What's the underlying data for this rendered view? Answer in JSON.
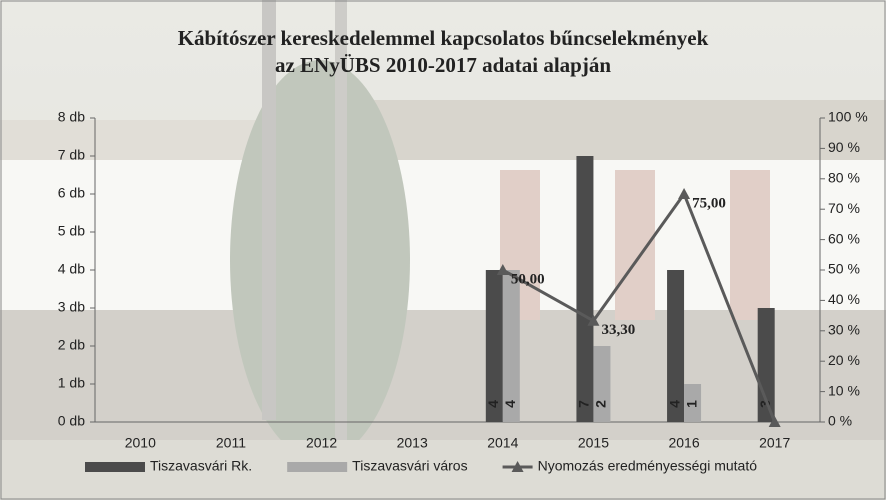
{
  "chart_data": {
    "type": "bar",
    "title": [
      "Kábítószer kereskedelemmel kapcsolatos bűncselekmények",
      "az ENyÜBS 2010-2017 adatai alapján"
    ],
    "categories": [
      "2010",
      "2011",
      "2012",
      "2013",
      "2014",
      "2015",
      "2016",
      "2017"
    ],
    "series": [
      {
        "name": "Tiszavasvári Rk.",
        "type": "bar",
        "color": "#4b4b4b",
        "values": [
          null,
          null,
          null,
          null,
          4,
          7,
          4,
          3
        ]
      },
      {
        "name": "Tiszavasvári város",
        "type": "bar",
        "color": "#a9a9a9",
        "values": [
          null,
          null,
          null,
          null,
          4,
          2,
          1,
          null
        ]
      },
      {
        "name": "Nyomozás eredményességi mutató",
        "type": "line",
        "axis": "y2",
        "color": "#5a5a5a",
        "values": [
          null,
          null,
          null,
          null,
          50,
          33.3,
          75,
          0
        ],
        "value_labels": [
          null,
          null,
          null,
          null,
          "50,00",
          "33,30",
          "75,00",
          null
        ]
      }
    ],
    "ylim": [
      0,
      8
    ],
    "yticks": [
      {
        "value": 0,
        "label": "0 db"
      },
      {
        "value": 1,
        "label": "1 db"
      },
      {
        "value": 2,
        "label": "2 db"
      },
      {
        "value": 3,
        "label": "3 db"
      },
      {
        "value": 4,
        "label": "4 db"
      },
      {
        "value": 5,
        "label": "5 db"
      },
      {
        "value": 6,
        "label": "6 db"
      },
      {
        "value": 7,
        "label": "7 db"
      },
      {
        "value": 8,
        "label": "8 db"
      }
    ],
    "y2lim": [
      0,
      100
    ],
    "y2ticks": [
      {
        "value": 0,
        "label": "0 %"
      },
      {
        "value": 10,
        "label": "10 %"
      },
      {
        "value": 20,
        "label": "20 %"
      },
      {
        "value": 30,
        "label": "30 %"
      },
      {
        "value": 40,
        "label": "40 %"
      },
      {
        "value": 50,
        "label": "50 %"
      },
      {
        "value": 60,
        "label": "60 %"
      },
      {
        "value": 70,
        "label": "70 %"
      },
      {
        "value": 80,
        "label": "80 %"
      },
      {
        "value": 90,
        "label": "90 %"
      },
      {
        "value": 100,
        "label": "100 %"
      }
    ],
    "legend": "bottom"
  }
}
